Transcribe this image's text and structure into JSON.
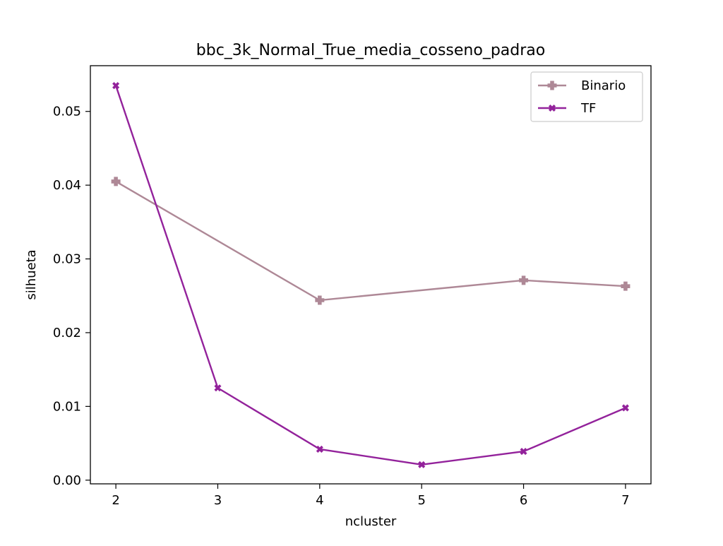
{
  "chart_data": {
    "type": "line",
    "title": "bbc_3k_Normal_True_media_cosseno_padrao",
    "xlabel": "ncluster",
    "ylabel": "silhueta",
    "x": [
      2,
      3,
      4,
      5,
      6,
      7
    ],
    "x_ticks": [
      "2",
      "3",
      "4",
      "5",
      "6",
      "7"
    ],
    "y_ticks": [
      "0.00",
      "0.01",
      "0.02",
      "0.03",
      "0.04",
      "0.05"
    ],
    "xlim": [
      1.75,
      7.25
    ],
    "ylim": [
      -0.0005,
      0.0562
    ],
    "grid": false,
    "legend_position": "top-right",
    "series": [
      {
        "name": "Binario",
        "color": "#ae8896",
        "marker": "plus-filled",
        "x": [
          2,
          4,
          6,
          7
        ],
        "values": [
          0.0405,
          0.0244,
          0.0271,
          0.0263
        ]
      },
      {
        "name": "TF",
        "color": "#93229b",
        "marker": "x-filled",
        "x": [
          2,
          3,
          4,
          5,
          6,
          7
        ],
        "values": [
          0.0535,
          0.0125,
          0.0042,
          0.0021,
          0.0039,
          0.0098
        ]
      }
    ]
  }
}
